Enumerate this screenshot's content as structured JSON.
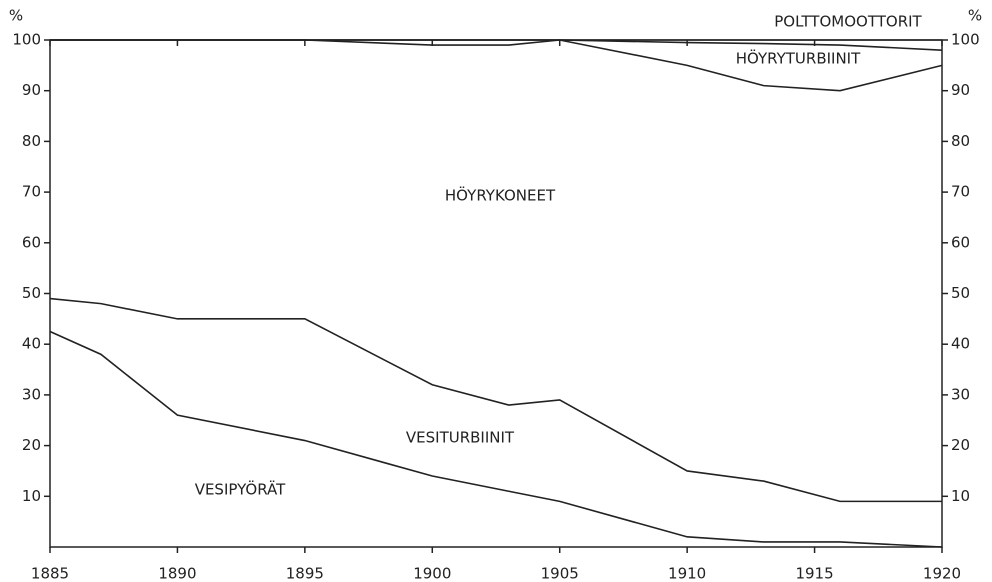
{
  "chart_data": {
    "type": "stacked_line",
    "y_label": "%",
    "x": [
      1885,
      1887,
      1890,
      1895,
      1900,
      1903,
      1905,
      1910,
      1913,
      1916,
      1920
    ],
    "xlim": [
      1885,
      1920
    ],
    "xticks": [
      1885,
      1890,
      1895,
      1900,
      1905,
      1910,
      1915,
      1920
    ],
    "ylim": [
      0,
      100
    ],
    "yticks": [
      10,
      20,
      30,
      40,
      50,
      60,
      70,
      80,
      90,
      100
    ],
    "series": [
      {
        "name": "VESIPYÖRÄT",
        "color": "#222222",
        "values": [
          42.5,
          38,
          26,
          21,
          14,
          11,
          9,
          2,
          1,
          1,
          0
        ]
      },
      {
        "name": "VESITURBIINIT",
        "color": "#222222",
        "values": [
          6.5,
          10,
          19,
          24,
          18,
          17,
          20,
          13,
          12,
          8,
          9
        ]
      },
      {
        "name": "HÖYRYKONEET",
        "color": "#222222",
        "values": [
          51,
          52,
          55,
          55,
          67,
          71,
          71,
          80,
          78,
          81,
          86
        ]
      },
      {
        "name": "HÖYRYTURBIINIT",
        "color": "#222222",
        "values": [
          0,
          0,
          0,
          0,
          1,
          1,
          0,
          4.5,
          8.3,
          9,
          3
        ]
      },
      {
        "name": "POLTTOMOOTTORIT",
        "color": "#222222",
        "values": [
          0,
          0,
          0,
          0,
          0,
          0,
          0,
          0.5,
          0.7,
          1,
          2
        ]
      }
    ]
  }
}
